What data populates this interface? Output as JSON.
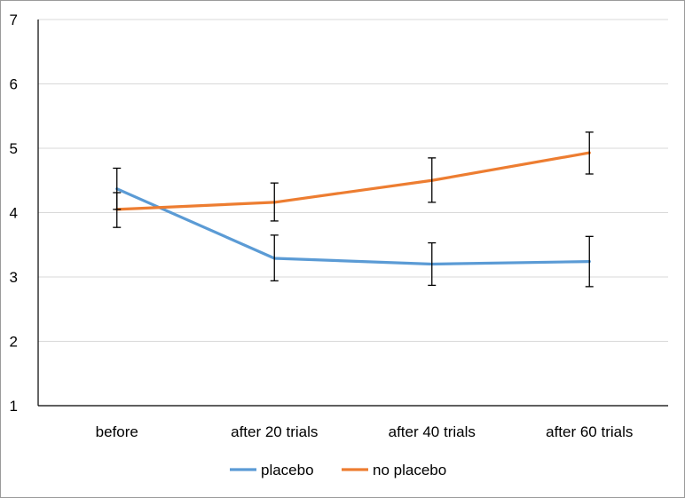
{
  "chart_data": {
    "type": "line",
    "title": "",
    "xlabel": "",
    "ylabel": "",
    "categories": [
      "before",
      "after 20 trials",
      "after 40 trials",
      "after 60 trials"
    ],
    "ylim": [
      1,
      7
    ],
    "yticks": [
      1,
      2,
      3,
      4,
      5,
      6,
      7
    ],
    "grid": true,
    "legend_position": "bottom",
    "series": [
      {
        "name": "placebo",
        "color": "#5B9BD5",
        "values": [
          4.37,
          3.29,
          3.2,
          3.24
        ],
        "error_low": [
          4.05,
          2.94,
          2.87,
          2.85
        ],
        "error_high": [
          4.69,
          3.65,
          3.53,
          3.63
        ]
      },
      {
        "name": "no placebo",
        "color": "#ED7D31",
        "values": [
          4.05,
          4.16,
          4.5,
          4.93
        ],
        "error_low": [
          3.77,
          3.87,
          4.16,
          4.6
        ],
        "error_high": [
          4.31,
          4.46,
          4.85,
          5.25
        ]
      }
    ]
  }
}
